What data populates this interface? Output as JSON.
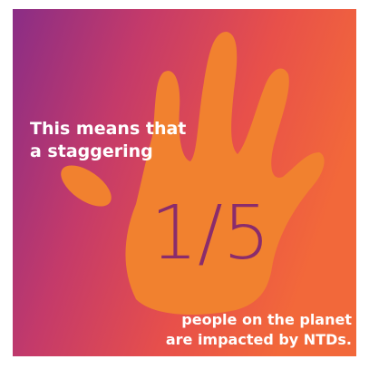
{
  "headline": {
    "lines": [
      "This means that",
      "a staggering"
    ]
  },
  "statistic": "1/5",
  "footer": {
    "lines": [
      "people on the planet",
      "are impacted by NTDs."
    ]
  }
}
